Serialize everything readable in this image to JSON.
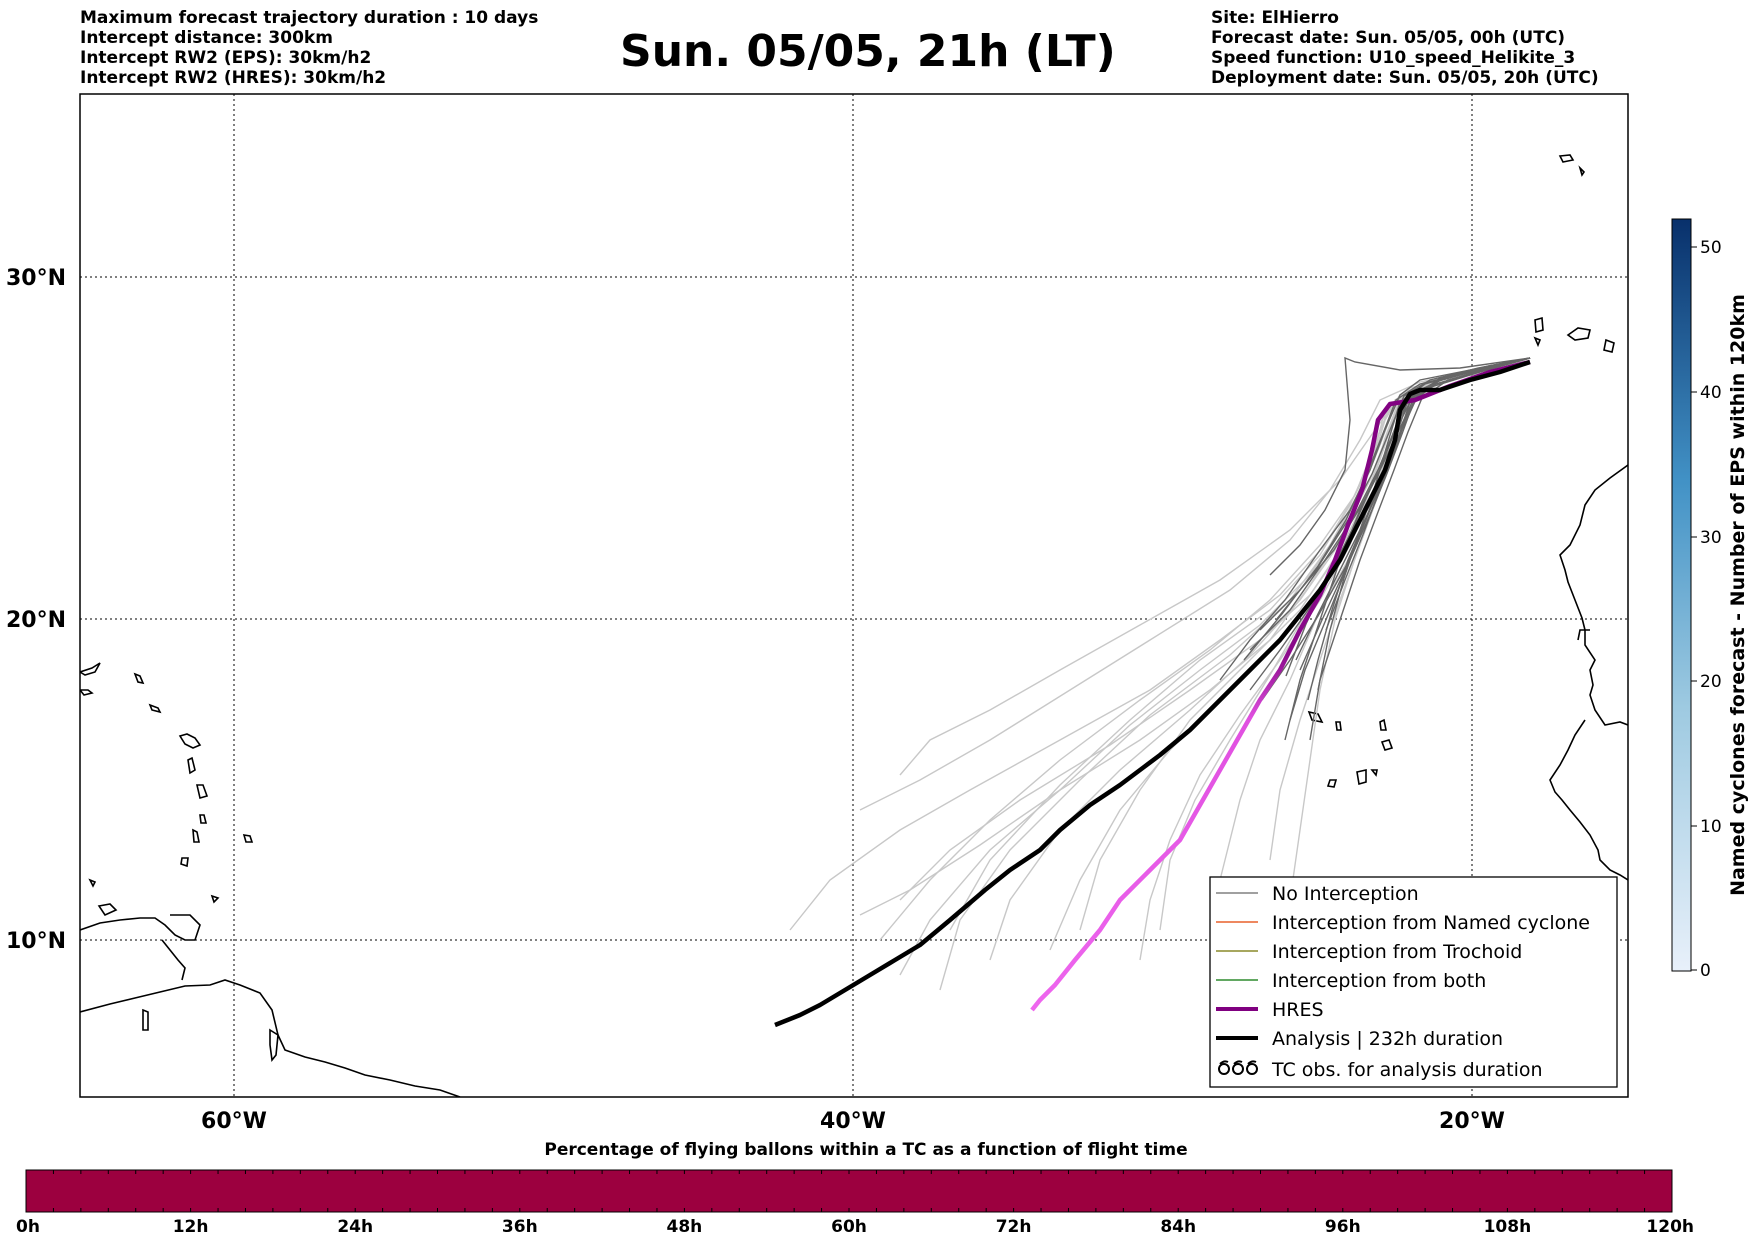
{
  "header": {
    "left_lines": [
      "Maximum forecast trajectory duration : 10 days",
      "Intercept distance: 300km",
      "Intercept RW2 (EPS):  30km/h2",
      "Intercept RW2 (HRES): 30km/h2"
    ],
    "title": "Sun. 05/05, 21h (LT)",
    "right_lines": [
      "Site: ElHierro",
      "Forecast date: Sun. 05/05, 00h (UTC)",
      "Speed function: U10_speed_Helikite_3",
      "Deployment date: Sun. 05/05, 20h (UTC)"
    ]
  },
  "map": {
    "lat_labels": [
      "30°N",
      "20°N",
      "10°N"
    ],
    "lon_labels": [
      "60°W",
      "40°W",
      "20°W"
    ],
    "gridlines": "dotted"
  },
  "legend": {
    "position": "bottom-right",
    "items": [
      {
        "label": "No Interception",
        "color": "#808080"
      },
      {
        "label": "Interception from Named cyclone",
        "color": "#e8602c"
      },
      {
        "label": "Interception from Trochoid",
        "color": "#8a8a2a"
      },
      {
        "label": "Interception from both",
        "color": "#2e8b2e"
      },
      {
        "label": "HRES",
        "color": "#800080"
      },
      {
        "label": "Analysis | 232h duration",
        "color": "#000000"
      },
      {
        "label": "TC obs. for analysis duration",
        "color": "#000000",
        "icon": "cyclone-symbols-icon"
      }
    ]
  },
  "colorbar_right": {
    "label": "Named cyclones forecast - Number of EPS within 120km",
    "ticks": [
      "50",
      "40",
      "30",
      "20",
      "10",
      "0"
    ],
    "color_top": "#0b3d7e",
    "color_bottom": "#e6eef8"
  },
  "bottom_bar": {
    "title": "Percentage of flying ballons within a TC as a function of flight time",
    "ticks": [
      "0h",
      "12h",
      "24h",
      "36h",
      "48h",
      "60h",
      "72h",
      "84h",
      "96h",
      "108h",
      "120h"
    ],
    "fill_color": "#9c003f"
  },
  "colors": {
    "hres_early": "#800080",
    "hres_late": "#ee66ee",
    "eps_near": "#666666",
    "eps_far": "#c8c8c8",
    "analysis": "#000000"
  }
}
